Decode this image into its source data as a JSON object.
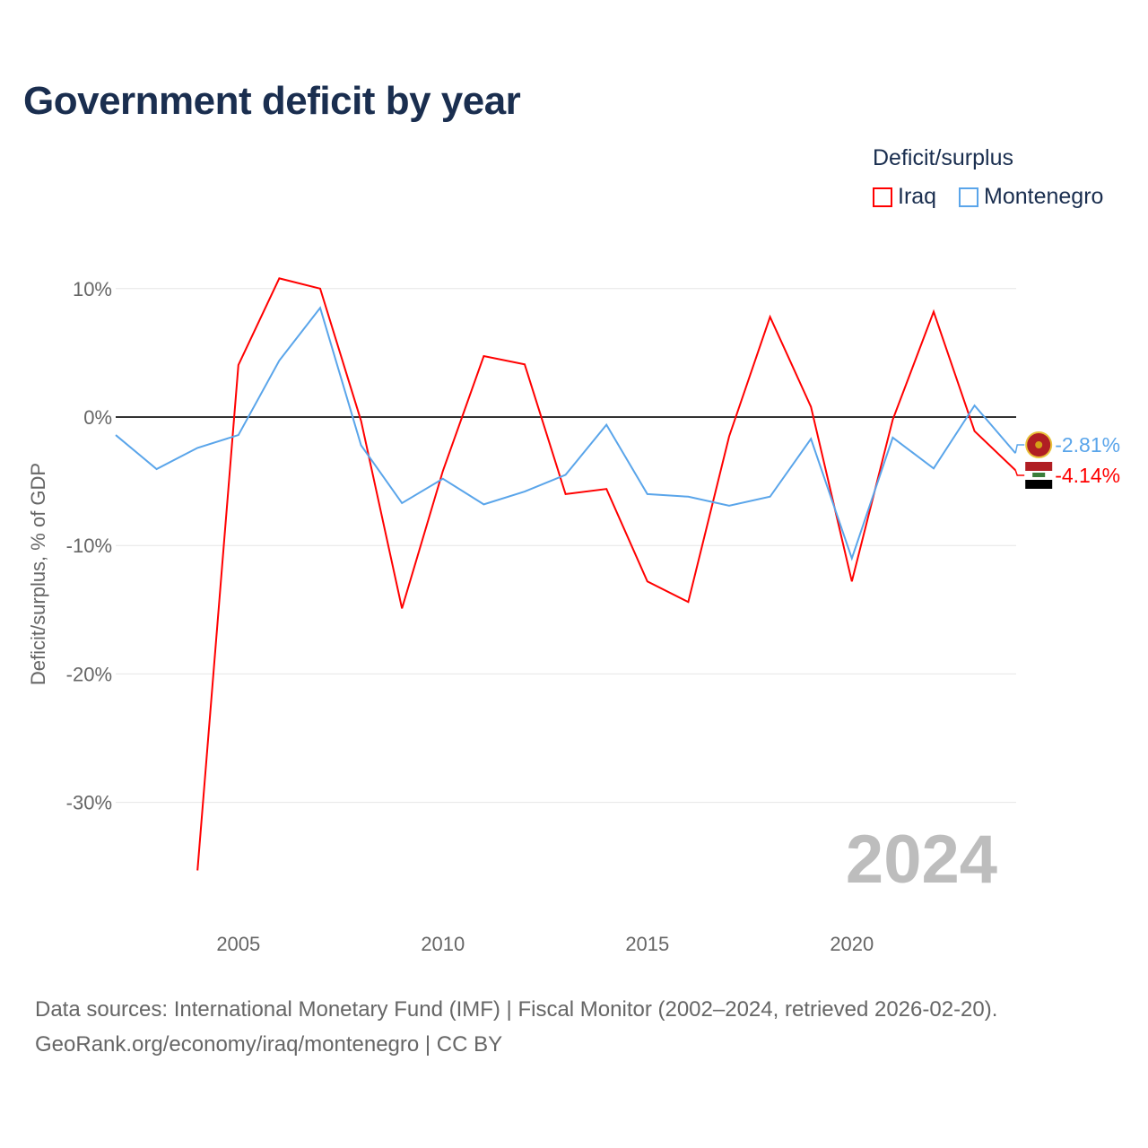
{
  "title": "Government deficit by year",
  "legend": {
    "title": "Deficit/surplus",
    "items": [
      {
        "label": "Iraq",
        "color": "#ff0000"
      },
      {
        "label": "Montenegro",
        "color": "#5aa5ea"
      }
    ]
  },
  "footer": {
    "line1": "Data sources: International Monetary Fund (IMF) | Fiscal Monitor (2002–2024, retrieved 2026-02-20).",
    "line2": "GeoRank.org/economy/iraq/montenegro | CC BY"
  },
  "chart_data": {
    "type": "line",
    "title": "Government deficit by year",
    "xlabel": "",
    "ylabel": "Deficit/surplus, % of GDP",
    "xlim": [
      2002,
      2024
    ],
    "ylim": [
      -37,
      12
    ],
    "xticks": [
      2005,
      2010,
      2015,
      2020
    ],
    "yticks": [
      10,
      0,
      -10,
      -20,
      -30
    ],
    "ytick_labels": [
      "10%",
      "0%",
      "-10%",
      "-20%",
      "-30%"
    ],
    "year_watermark": "2024",
    "series": [
      {
        "name": "Iraq",
        "color": "#ff0000",
        "end_label": "-4.14%",
        "x": [
          2004,
          2005,
          2006,
          2007,
          2008,
          2009,
          2010,
          2011,
          2012,
          2013,
          2014,
          2015,
          2016,
          2017,
          2018,
          2019,
          2020,
          2021,
          2022,
          2023,
          2024
        ],
        "values": [
          -35.3,
          4.05,
          10.8,
          10.0,
          -0.3,
          -14.9,
          -4.2,
          4.75,
          4.1,
          -6.0,
          -5.6,
          -12.8,
          -14.4,
          -1.5,
          7.8,
          0.8,
          -12.8,
          -0.2,
          8.2,
          -1.1,
          -4.14
        ]
      },
      {
        "name": "Montenegro",
        "color": "#5aa5ea",
        "end_label": "-2.81%",
        "x": [
          2002,
          2003,
          2004,
          2005,
          2006,
          2007,
          2008,
          2009,
          2010,
          2011,
          2012,
          2013,
          2014,
          2015,
          2016,
          2017,
          2018,
          2019,
          2020,
          2021,
          2022,
          2023,
          2024
        ],
        "values": [
          -1.4,
          -4.05,
          -2.4,
          -1.4,
          4.4,
          8.5,
          -2.2,
          -6.7,
          -4.8,
          -6.8,
          -5.8,
          -4.5,
          -0.6,
          -6.0,
          -6.2,
          -6.9,
          -6.2,
          -1.7,
          -11.0,
          -1.6,
          -4.0,
          0.9,
          -2.81
        ]
      }
    ]
  }
}
